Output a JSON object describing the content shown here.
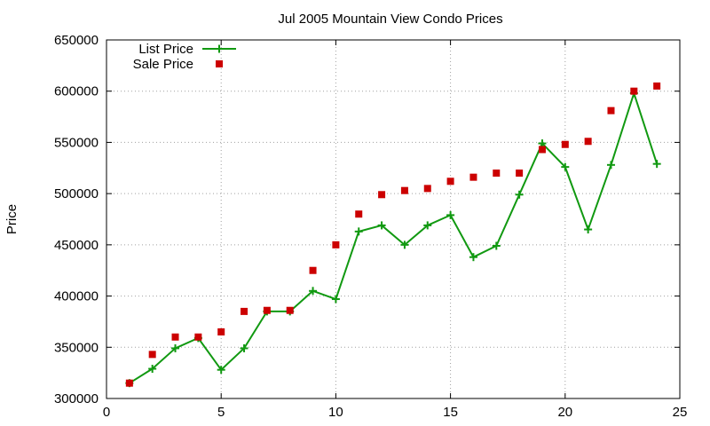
{
  "chart_data": {
    "type": "line",
    "title": "Jul 2005 Mountain View Condo Prices",
    "xlabel": "",
    "ylabel": "Price",
    "xlim": [
      0,
      25
    ],
    "ylim": [
      300000,
      650000
    ],
    "x_ticks": [
      0,
      5,
      10,
      15,
      20,
      25
    ],
    "y_ticks": [
      300000,
      350000,
      400000,
      450000,
      500000,
      550000,
      600000,
      650000
    ],
    "grid": true,
    "legend_position": "top-left",
    "series": [
      {
        "name": "List Price",
        "style": "line-with-plus-markers",
        "color": "#119911",
        "x": [
          1,
          2,
          3,
          4,
          5,
          6,
          7,
          8,
          9,
          10,
          11,
          12,
          13,
          14,
          15,
          16,
          17,
          18,
          19,
          20,
          21,
          22,
          23,
          24
        ],
        "values": [
          315000,
          329000,
          349000,
          359000,
          328000,
          349000,
          385000,
          385000,
          405000,
          397000,
          463000,
          469000,
          450000,
          469000,
          479000,
          438000,
          449000,
          499000,
          549000,
          526000,
          465000,
          528000,
          598000,
          529000
        ]
      },
      {
        "name": "Sale Price",
        "style": "square-markers",
        "color": "#cc0000",
        "x": [
          1,
          2,
          3,
          4,
          5,
          6,
          7,
          8,
          9,
          10,
          11,
          12,
          13,
          14,
          15,
          16,
          17,
          18,
          19,
          20,
          21,
          22,
          23,
          24
        ],
        "values": [
          315000,
          343000,
          360000,
          360000,
          365000,
          385000,
          386000,
          386000,
          425000,
          450000,
          480000,
          499000,
          503000,
          505000,
          512000,
          516000,
          520000,
          520000,
          543000,
          548000,
          551000,
          581000,
          600000,
          605000
        ]
      }
    ]
  }
}
